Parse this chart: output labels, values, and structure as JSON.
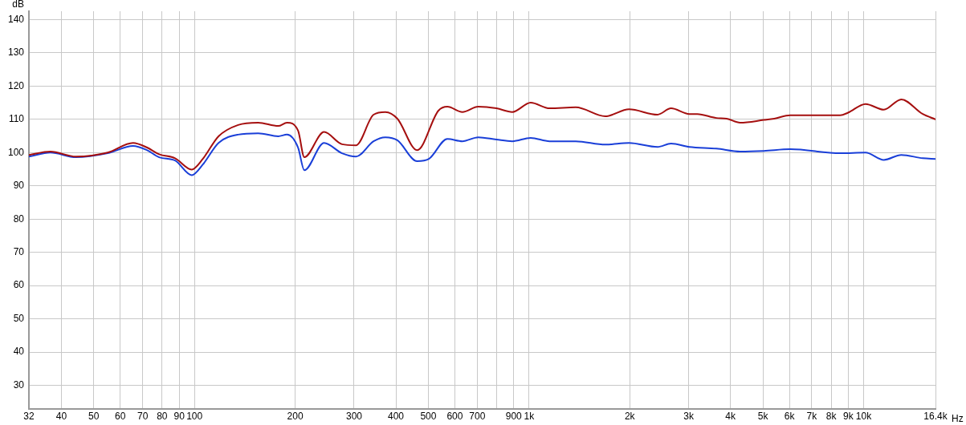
{
  "chart_data": {
    "type": "line",
    "xlabel": "Hz",
    "ylabel": "dB",
    "log": "x",
    "grid": true,
    "legend": false,
    "marker": "none",
    "line_style": "solid",
    "xlim": [
      32,
      16400
    ],
    "ylim": [
      23,
      142.5
    ],
    "xticks": [
      32,
      40,
      50,
      60,
      70,
      80,
      90,
      100,
      200,
      300,
      400,
      500,
      600,
      700,
      {
        "value": 800,
        "label": null
      },
      900,
      {
        "value": 1000,
        "label": "1k"
      },
      {
        "value": 2000,
        "label": "2k"
      },
      {
        "value": 3000,
        "label": "3k"
      },
      {
        "value": 4000,
        "label": "4k"
      },
      {
        "value": 5000,
        "label": "5k"
      },
      {
        "value": 6000,
        "label": "6k"
      },
      {
        "value": 7000,
        "label": "7k"
      },
      {
        "value": 8000,
        "label": "8k"
      },
      {
        "value": 9000,
        "label": "9k"
      },
      {
        "value": 10000,
        "label": "10k"
      },
      {
        "value": 16400,
        "label": "16.4k"
      }
    ],
    "yticks": [
      30,
      40,
      50,
      60,
      70,
      80,
      90,
      100,
      110,
      120,
      130,
      140
    ],
    "series": [
      {
        "color": "#a50f0f",
        "x": [
          32,
          37.1,
          44.2,
          55,
          65.5,
          72.2,
          78.4,
          87.5,
          98.1,
          105.9,
          118,
          135,
          155,
          178,
          189,
          204,
          213,
          244,
          276,
          304,
          343,
          372,
          404,
          463,
          536,
          570,
          632,
          705,
          799,
          891,
          1011,
          1152,
          1379,
          1690,
          1990,
          2422,
          2657,
          3014,
          3183,
          3629,
          3895,
          4275,
          5034,
          5407,
          6032,
          7222,
          8512,
          8987,
          10134,
          11494,
          12963,
          15021,
          16400
        ],
        "values": [
          99.3,
          100.3,
          98.8,
          100.0,
          102.9,
          101.5,
          99.5,
          98.3,
          94.9,
          98.1,
          104.9,
          108.3,
          109.0,
          108.0,
          109.0,
          106.6,
          98.6,
          106.2,
          102.5,
          102.2,
          111.4,
          112.2,
          110.2,
          100.7,
          112.6,
          113.8,
          112.2,
          113.8,
          113.3,
          112.2,
          115.0,
          113.3,
          113.6,
          110.9,
          113.0,
          111.4,
          113.3,
          111.6,
          111.6,
          110.4,
          110.2,
          109.0,
          109.8,
          110.2,
          111.2,
          111.2,
          111.2,
          112.0,
          114.6,
          112.9,
          116.0,
          111.6,
          110.0
        ]
      },
      {
        "color": "#1a3fd8",
        "x": [
          32,
          37.1,
          44.2,
          55,
          65.5,
          72.2,
          78.4,
          87.5,
          98.1,
          105.9,
          118,
          135,
          155,
          178,
          189,
          204,
          213,
          244,
          276,
          304,
          343,
          372,
          404,
          463,
          502,
          570,
          632,
          705,
          799,
          891,
          1011,
          1152,
          1379,
          1690,
          1990,
          2422,
          2657,
          3014,
          3629,
          4275,
          5034,
          6032,
          8512,
          10134,
          11494,
          12963,
          15021,
          16400
        ],
        "values": [
          98.8,
          100.0,
          98.6,
          99.8,
          102.0,
          100.7,
          98.6,
          97.6,
          93.2,
          96.4,
          102.9,
          105.4,
          105.8,
          104.9,
          105.4,
          101.5,
          94.7,
          102.9,
          99.8,
          98.8,
          103.4,
          104.6,
          103.7,
          97.4,
          98.1,
          104.1,
          103.4,
          104.6,
          103.9,
          103.4,
          104.4,
          103.4,
          103.4,
          102.4,
          102.9,
          101.7,
          102.7,
          101.7,
          101.2,
          100.3,
          100.5,
          101.0,
          99.8,
          100.0,
          97.8,
          99.3,
          98.3,
          98.1
        ]
      }
    ]
  }
}
